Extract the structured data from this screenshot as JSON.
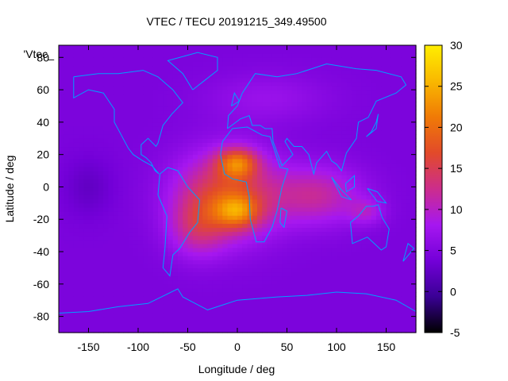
{
  "chart_data": {
    "type": "heatmap",
    "title": "VTEC / TECU 20191215_349.49500",
    "xlabel": "Longitude / deg",
    "ylabel": "Latitude / deg",
    "key_label": "'Vtec_",
    "xlim": [
      -180,
      180
    ],
    "ylim": [
      -90,
      87.5
    ],
    "x_ticks": [
      "-150",
      "-100",
      "-50",
      "0",
      "50",
      "100",
      "150"
    ],
    "x_tick_values": [
      -150,
      -100,
      -50,
      0,
      50,
      100,
      150
    ],
    "y_ticks": [
      "-80",
      "-60",
      "-40",
      "-20",
      "0",
      "20",
      "40",
      "60",
      "80"
    ],
    "y_tick_values": [
      -80,
      -60,
      -40,
      -20,
      0,
      20,
      40,
      60,
      80
    ],
    "colorbar": {
      "range": [
        -5,
        30
      ],
      "ticks": [
        "-5",
        "0",
        "5",
        "10",
        "15",
        "20",
        "25",
        "30"
      ],
      "tick_values": [
        -5,
        0,
        5,
        10,
        15,
        20,
        25,
        30
      ],
      "palette": [
        "#000000",
        "#3a0095",
        "#7300d8",
        "#a617f0",
        "#cc2d8c",
        "#e24a2a",
        "#f07a06",
        "#f9b800",
        "#ffee00"
      ]
    },
    "field": {
      "background_tecu": 4.5,
      "unit": "TECU",
      "features": [
        {
          "lon": -10,
          "lat": -5,
          "peak_tecu": 12,
          "sigma_lon": 50,
          "sigma_lat": 26
        },
        {
          "lon": 0,
          "lat": 15,
          "peak_tecu": 12,
          "sigma_lon": 20,
          "sigma_lat": 9
        },
        {
          "lon": 0,
          "lat": -15,
          "peak_tecu": 10,
          "sigma_lon": 22,
          "sigma_lat": 10
        },
        {
          "lon": -40,
          "lat": -25,
          "peak_tecu": 6,
          "sigma_lon": 28,
          "sigma_lat": 18
        },
        {
          "lon": 80,
          "lat": -5,
          "peak_tecu": 7,
          "sigma_lon": 45,
          "sigma_lat": 18
        },
        {
          "lon": 130,
          "lat": -15,
          "peak_tecu": 4,
          "sigma_lon": 18,
          "sigma_lat": 8
        },
        {
          "lon": -150,
          "lat": 0,
          "peak_tecu": -2,
          "sigma_lon": 25,
          "sigma_lat": 18
        },
        {
          "lon": 30,
          "lat": 55,
          "peak_tecu": 2.5,
          "sigma_lon": 60,
          "sigma_lat": 15
        }
      ]
    },
    "overlay": "continent coastlines",
    "grid": false
  },
  "colors": {
    "coastline": "#00a0ff",
    "axes": "#000000"
  }
}
